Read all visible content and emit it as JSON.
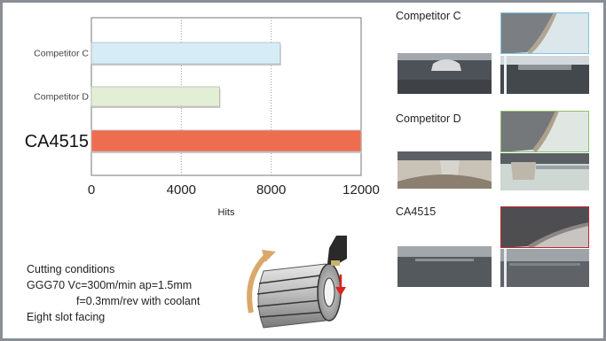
{
  "chart_data": {
    "type": "bar",
    "orientation": "horizontal",
    "categories": [
      "Competitor C",
      "Competitor D",
      "CA4515"
    ],
    "values": [
      8400,
      5700,
      12000
    ],
    "colors": [
      "#d6ecf7",
      "#e3efd5",
      "#ef6d4f"
    ],
    "xlabel": "Hits",
    "xlim": [
      0,
      12000
    ],
    "xticks": [
      "0",
      "4000",
      "8000",
      "12000"
    ],
    "grid": "vertical-dotted"
  },
  "conditions": {
    "title": "Cutting conditions",
    "line1": "GGG70 Vc=300m/min ap=1.5mm",
    "line2": "f=0.3mm/rev with coolant",
    "line3": "Eight slot facing"
  },
  "photos": [
    {
      "label": "Competitor C",
      "frame_color": "#7fc3e6"
    },
    {
      "label": "Competitor D",
      "frame_color": "#8dc06a"
    },
    {
      "label": "CA4515",
      "frame_color": "#c0282e"
    }
  ]
}
